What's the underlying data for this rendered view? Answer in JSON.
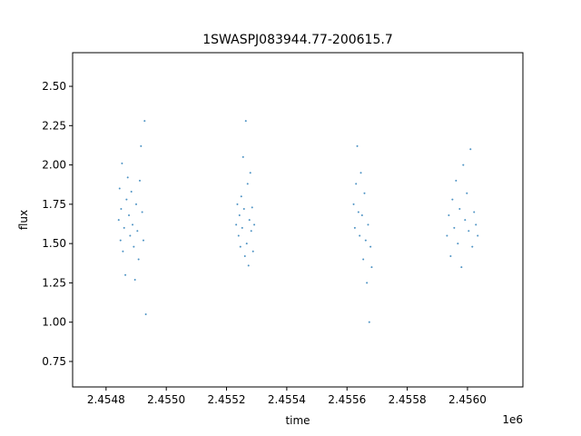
{
  "chart_data": {
    "type": "scatter",
    "title": "1SWASPJ083944.77-200615.7",
    "xlabel": "time",
    "ylabel": "flux",
    "x_offset_label": "1e6",
    "color": "#1f77b4",
    "xlim": [
      2454689,
      2456184
    ],
    "ylim": [
      0.588,
      2.714
    ],
    "xticks": [
      {
        "value": 2454800,
        "label": "2.4548"
      },
      {
        "value": 2455000,
        "label": "2.4550"
      },
      {
        "value": 2455200,
        "label": "2.4552"
      },
      {
        "value": 2455400,
        "label": "2.4554"
      },
      {
        "value": 2455600,
        "label": "2.4556"
      },
      {
        "value": 2455800,
        "label": "2.4558"
      },
      {
        "value": 2456000,
        "label": "2.4560"
      }
    ],
    "yticks": [
      0.75,
      {
        "value": 1.0,
        "label": "1.00"
      },
      1.25,
      {
        "value": 1.5,
        "label": "1.50"
      },
      1.75,
      {
        "value": 2.0,
        "label": "2.00"
      },
      2.25,
      {
        "value": 2.5,
        "label": "2.50"
      }
    ],
    "x": [
      2454842,
      2454845,
      2454848,
      2454850,
      2454853,
      2454856,
      2454860,
      2454864,
      2454868,
      2454872,
      2454876,
      2454880,
      2454884,
      2454888,
      2454892,
      2454896,
      2454900,
      2454904,
      2454908,
      2454912,
      2454916,
      2454920,
      2454924,
      2454928,
      2454932,
      2455232,
      2455236,
      2455240,
      2455243,
      2455246,
      2455249,
      2455252,
      2455255,
      2455258,
      2455261,
      2455264,
      2455267,
      2455270,
      2455273,
      2455276,
      2455279,
      2455282,
      2455285,
      2455288,
      2455292,
      2455622,
      2455626,
      2455630,
      2455634,
      2455638,
      2455642,
      2455646,
      2455650,
      2455654,
      2455658,
      2455662,
      2455666,
      2455670,
      2455674,
      2455678,
      2455682,
      2455932,
      2455938,
      2455944,
      2455950,
      2455956,
      2455962,
      2455968,
      2455974,
      2455980,
      2455986,
      2455992,
      2455998,
      2456004,
      2456010,
      2456016,
      2456022,
      2456028,
      2456034
    ],
    "values": [
      1.65,
      1.85,
      1.52,
      1.72,
      2.01,
      1.45,
      1.6,
      1.3,
      1.78,
      1.92,
      1.68,
      1.55,
      1.83,
      1.62,
      1.48,
      1.27,
      1.75,
      1.58,
      1.4,
      1.9,
      2.12,
      1.7,
      1.52,
      2.28,
      1.05,
      1.62,
      1.75,
      1.55,
      1.68,
      1.48,
      1.8,
      1.6,
      2.05,
      1.72,
      1.42,
      2.28,
      1.5,
      1.88,
      1.36,
      1.65,
      1.95,
      1.58,
      1.73,
      1.45,
      1.62,
      1.75,
      1.6,
      1.88,
      2.12,
      1.7,
      1.55,
      1.95,
      1.68,
      1.4,
      1.82,
      1.52,
      1.25,
      1.62,
      1.0,
      1.48,
      1.35,
      1.55,
      1.68,
      1.42,
      1.78,
      1.6,
      1.9,
      1.5,
      1.72,
      1.35,
      2.0,
      1.65,
      1.82,
      1.58,
      2.1,
      1.48,
      1.7,
      1.62,
      1.55
    ]
  }
}
